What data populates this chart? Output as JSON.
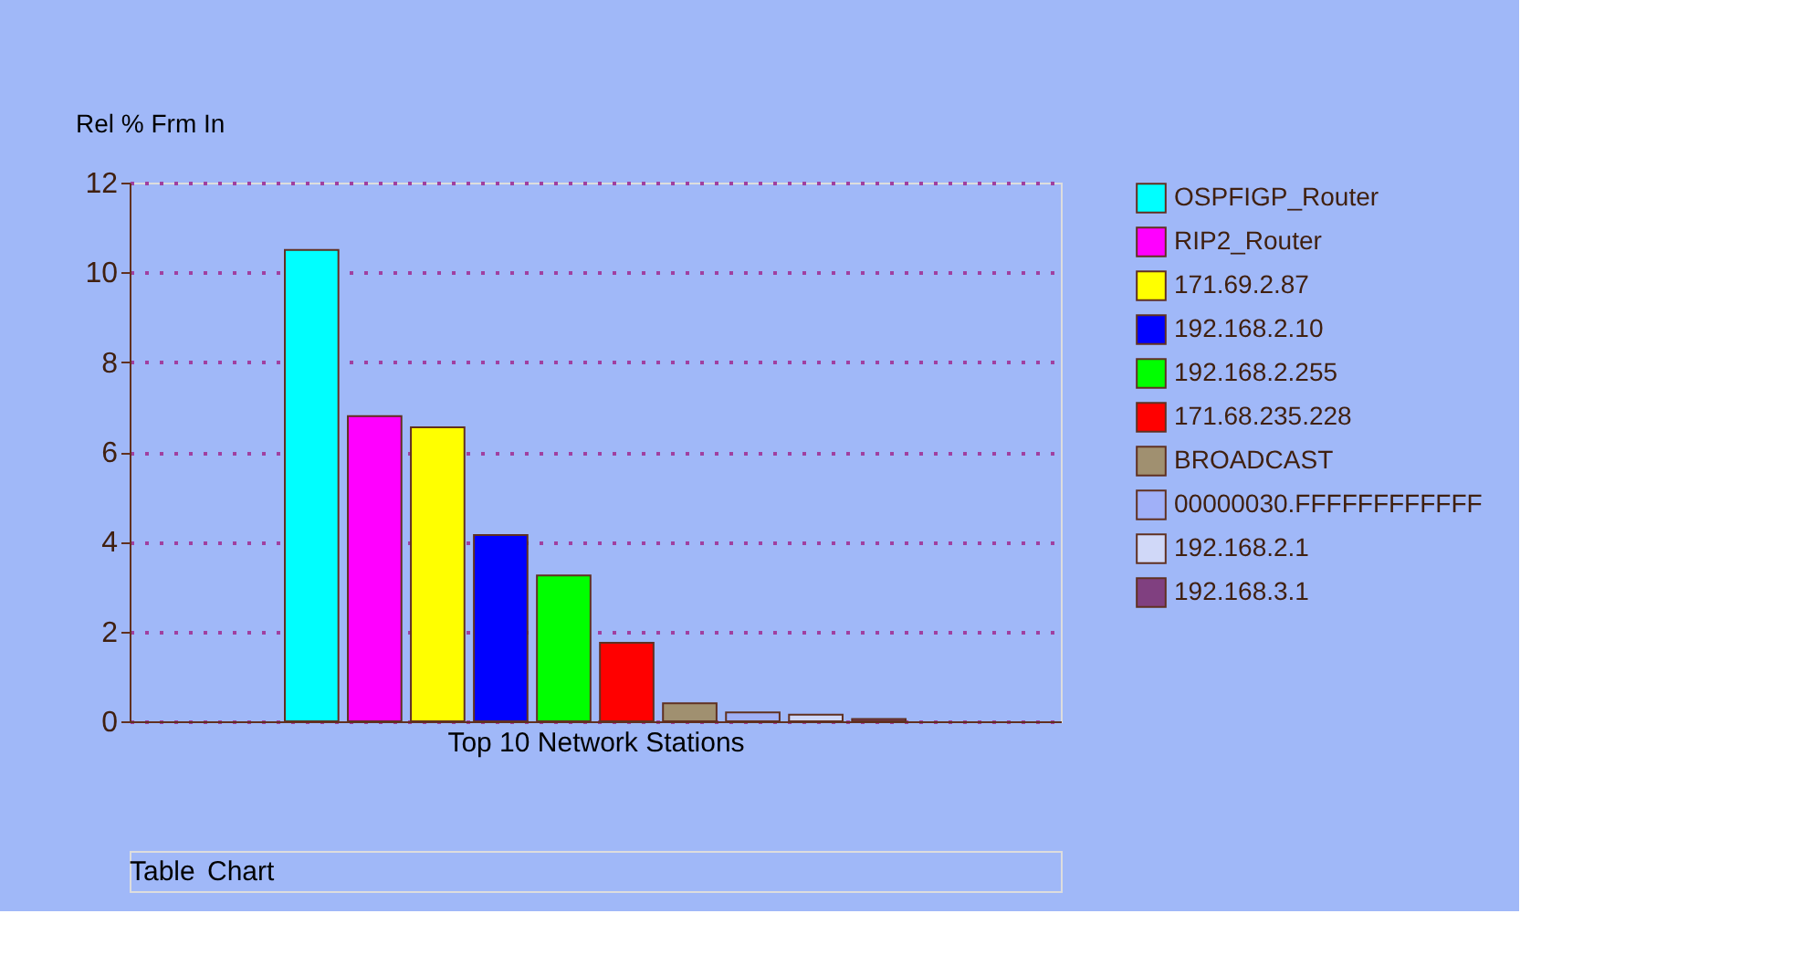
{
  "chart_data": {
    "type": "bar",
    "ylabel": "Rel % Frm In",
    "xlabel": "Top 10 Network Stations",
    "categories": [
      null
    ],
    "series": [
      {
        "name": "OSPFIGP_Router",
        "color": "#00ffff",
        "values": [
          10.5
        ]
      },
      {
        "name": "RIP2_Router",
        "color": "#ff00ff",
        "values": [
          6.8
        ]
      },
      {
        "name": "171.69.2.87",
        "color": "#ffff00",
        "values": [
          6.55
        ]
      },
      {
        "name": "192.168.2.10",
        "color": "#0000ff",
        "values": [
          4.15
        ]
      },
      {
        "name": "192.168.2.255",
        "color": "#00ff00",
        "values": [
          3.25
        ]
      },
      {
        "name": "171.68.235.228",
        "color": "#ff0000",
        "values": [
          1.75
        ]
      },
      {
        "name": "BROADCAST",
        "color": "#a09070",
        "values": [
          0.4
        ]
      },
      {
        "name": "00000030.FFFFFFFFFFFF",
        "color": "#a0b0f8",
        "values": [
          0.2
        ]
      },
      {
        "name": "192.168.2.1",
        "color": "#d0d8f8",
        "values": [
          0.15
        ]
      },
      {
        "name": "192.168.3.1",
        "color": "#804080",
        "values": [
          0.05
        ]
      }
    ],
    "ylim": [
      0,
      12
    ],
    "yticks": [
      0,
      2,
      4,
      6,
      8,
      10,
      12
    ],
    "grid": "y",
    "legend": "right",
    "tick_labels": "y",
    "annotations": [
      "Table",
      "Chart"
    ]
  }
}
